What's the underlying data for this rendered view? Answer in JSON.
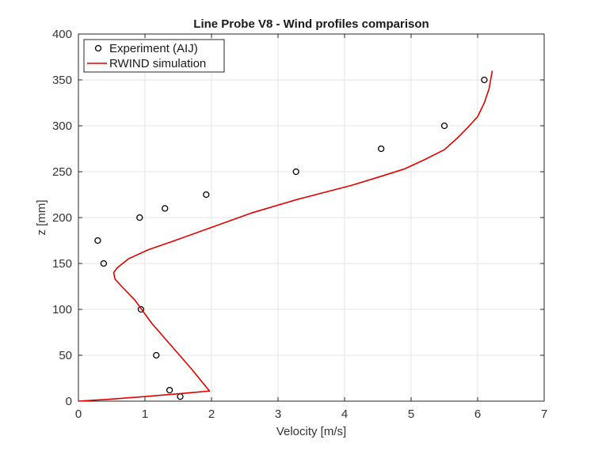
{
  "chart_data": {
    "type": "scatter",
    "title": "Line Probe V8 - Wind profiles comparison",
    "xlabel": "Velocity [m/s]",
    "ylabel": "z [mm]",
    "xlim": [
      0,
      7
    ],
    "ylim": [
      0,
      400
    ],
    "xticks": [
      0,
      1,
      2,
      3,
      4,
      5,
      6,
      7
    ],
    "yticks": [
      0,
      50,
      100,
      150,
      200,
      250,
      300,
      350,
      400
    ],
    "grid": true,
    "legend_position": "top-left",
    "series": [
      {
        "name": "Experiment (AIJ)",
        "kind": "scatter",
        "marker": "open-circle",
        "color": "#000000",
        "x": [
          1.53,
          1.37,
          1.17,
          0.94,
          0.38,
          0.29,
          0.92,
          1.3,
          1.92,
          3.27,
          4.55,
          5.5,
          6.1
        ],
        "y": [
          5,
          12,
          50,
          100,
          150,
          175,
          200,
          210,
          225,
          250,
          275,
          300,
          350
        ]
      },
      {
        "name": "RWIND simulation",
        "kind": "line",
        "color": "#e00000",
        "x": [
          0.0,
          0.45,
          1.0,
          1.5,
          1.97,
          1.7,
          1.4,
          1.1,
          0.85,
          0.65,
          0.55,
          0.53,
          0.58,
          0.75,
          1.05,
          1.45,
          1.95,
          2.6,
          3.3,
          4.1,
          4.55,
          4.9,
          5.2,
          5.5,
          5.7,
          5.85,
          6.0,
          6.1,
          6.17,
          6.22
        ],
        "y": [
          0,
          2,
          5,
          8,
          11,
          35,
          60,
          85,
          110,
          125,
          133,
          140,
          145,
          155,
          165,
          175,
          188,
          205,
          220,
          235,
          245,
          253,
          263,
          274,
          287,
          298,
          310,
          325,
          340,
          360
        ]
      }
    ]
  }
}
